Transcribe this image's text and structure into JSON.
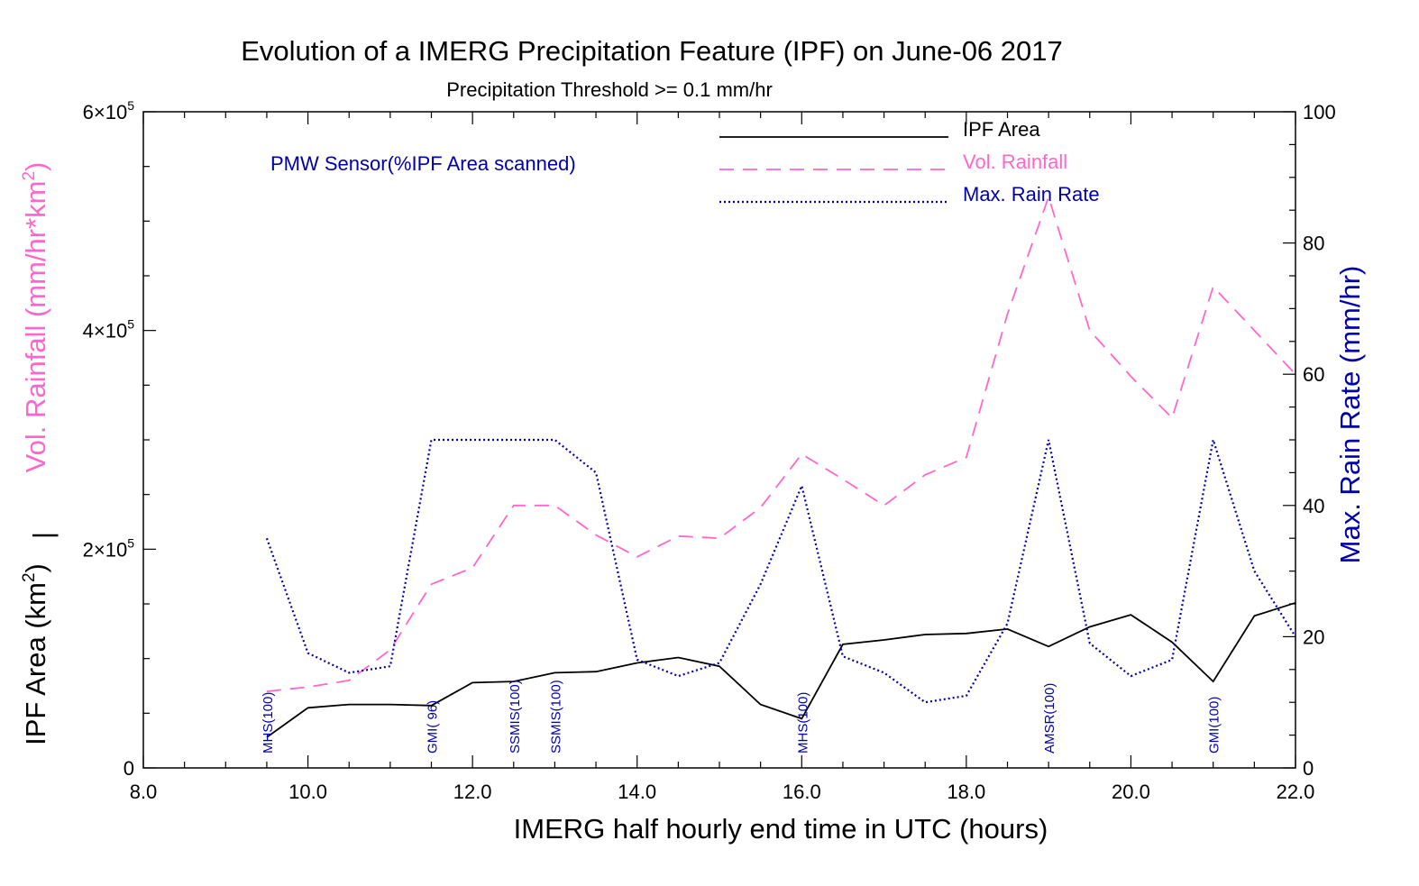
{
  "chart_data": {
    "type": "line",
    "title": "Evolution of a IMERG Precipitation Feature (IPF) on June-06 2017",
    "subtitle": "Precipitation Threshold >= 0.1 mm/hr",
    "xlabel": "IMERG half hourly end time in UTC (hours)",
    "xlim": [
      8.0,
      22.0
    ],
    "x_ticks": [
      "8.0",
      "10.0",
      "12.0",
      "14.0",
      "16.0",
      "18.0",
      "20.0",
      "22.0"
    ],
    "left_axis": {
      "label_vol_rainfall": "Vol. Rainfall (mm/hr*km",
      "label_vol_rainfall_sup": "2",
      "label_vol_rainfall_end": ")",
      "separator": "|",
      "label_ipf_area": "IPF Area (km",
      "label_ipf_area_sup": "2",
      "label_ipf_area_end": ")",
      "ylim": [
        0,
        600000
      ],
      "ticks": [
        {
          "value": 0,
          "mant": "0",
          "exp": ""
        },
        {
          "value": 200000,
          "mant": "2×10",
          "exp": "5"
        },
        {
          "value": 400000,
          "mant": "4×10",
          "exp": "5"
        },
        {
          "value": 600000,
          "mant": "6×10",
          "exp": "5"
        }
      ]
    },
    "right_axis": {
      "label": "Max. Rain Rate (mm/hr)",
      "ylim": [
        0,
        100
      ],
      "ticks": [
        "0",
        "20",
        "40",
        "60",
        "80",
        "100"
      ]
    },
    "legend_title": "PMW Sensor(%IPF Area scanned)",
    "legend_position": "top-right",
    "x": [
      9.5,
      10.0,
      10.5,
      11.0,
      11.5,
      12.0,
      12.5,
      13.0,
      13.5,
      14.0,
      14.5,
      15.0,
      15.5,
      16.0,
      16.5,
      17.0,
      17.5,
      18.0,
      18.5,
      19.0,
      19.5,
      20.0,
      20.5,
      21.0,
      21.5,
      22.0
    ],
    "series": [
      {
        "name": "IPF Area",
        "axis": "left",
        "color": "#000000",
        "style": "solid",
        "values": [
          28000,
          55000,
          58000,
          58000,
          57000,
          78000,
          79000,
          87000,
          88000,
          96000,
          101000,
          93000,
          58000,
          45000,
          113000,
          117000,
          122000,
          123000,
          127000,
          111000,
          129000,
          140000,
          115000,
          79000,
          139000,
          151000
        ]
      },
      {
        "name": "Vol. Rainfall",
        "axis": "left",
        "color": "#ff66cc",
        "style": "dashed",
        "values": [
          70000,
          74000,
          80000,
          108000,
          168000,
          183000,
          240000,
          240000,
          213000,
          193000,
          212000,
          210000,
          238000,
          287000,
          264000,
          240000,
          268000,
          284000,
          415000,
          522000,
          400000,
          358000,
          320000,
          440000,
          400000,
          360000
        ]
      },
      {
        "name": "Max. Rain Rate",
        "axis": "right",
        "color": "#0000aa",
        "style": "dotted",
        "values": [
          35,
          17.5,
          14.5,
          15.5,
          50,
          50,
          50,
          50,
          45,
          16.5,
          14,
          16,
          28,
          43,
          17,
          14.5,
          10,
          11,
          22,
          50,
          19,
          14,
          16.5,
          50,
          30,
          20
        ]
      }
    ],
    "sensor_annotations": [
      {
        "x": 9.5,
        "label": "MHS(100)"
      },
      {
        "x": 11.5,
        "label": "GMI( 96)"
      },
      {
        "x": 12.5,
        "label": "SSMIS(100)"
      },
      {
        "x": 13.0,
        "label": "SSMIS(100)"
      },
      {
        "x": 16.0,
        "label": "MHS(100)"
      },
      {
        "x": 19.0,
        "label": "AMSR(100)"
      },
      {
        "x": 21.0,
        "label": "GMI(100)"
      }
    ]
  }
}
